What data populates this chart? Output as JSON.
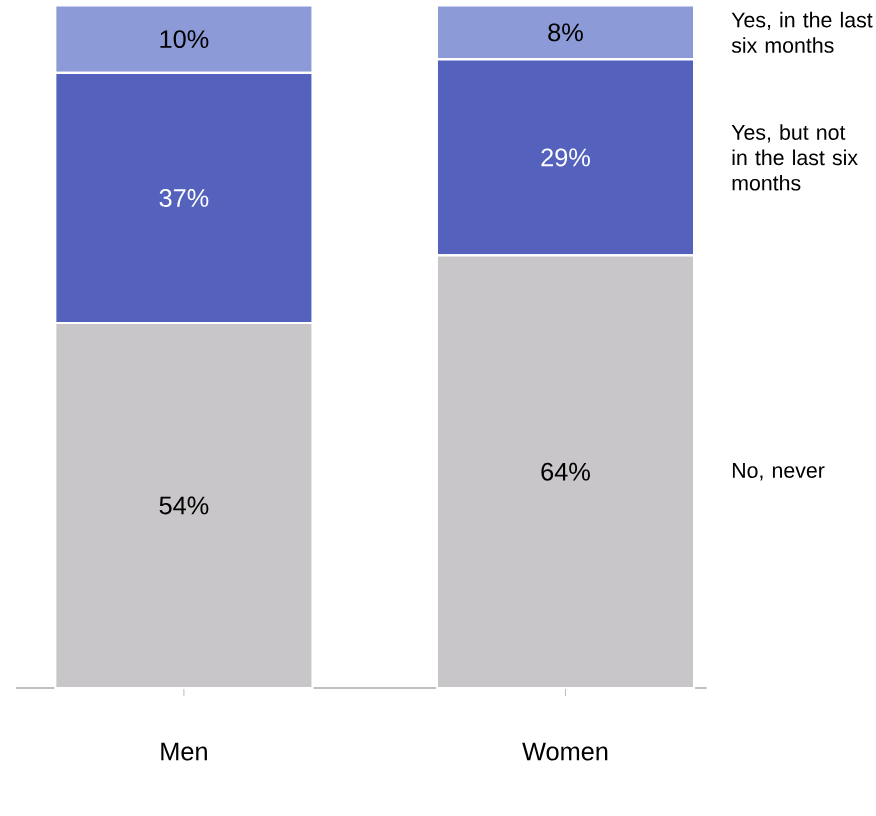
{
  "chart_data": {
    "type": "bar",
    "stacked": true,
    "categories": [
      "Men",
      "Women"
    ],
    "series": [
      {
        "name": "No, never",
        "color": "#c8c6c8",
        "values": [
          54,
          64
        ],
        "value_labels": [
          "54%",
          "64%"
        ]
      },
      {
        "name": "Yes, but not in the last six months",
        "color": "#5462bd",
        "values": [
          37,
          29
        ],
        "value_labels": [
          "37%",
          "29%"
        ]
      },
      {
        "name": "Yes, in the last six months",
        "color": "#8c9ad8",
        "values": [
          10,
          8
        ],
        "value_labels": [
          "10%",
          "8%"
        ]
      }
    ]
  }
}
